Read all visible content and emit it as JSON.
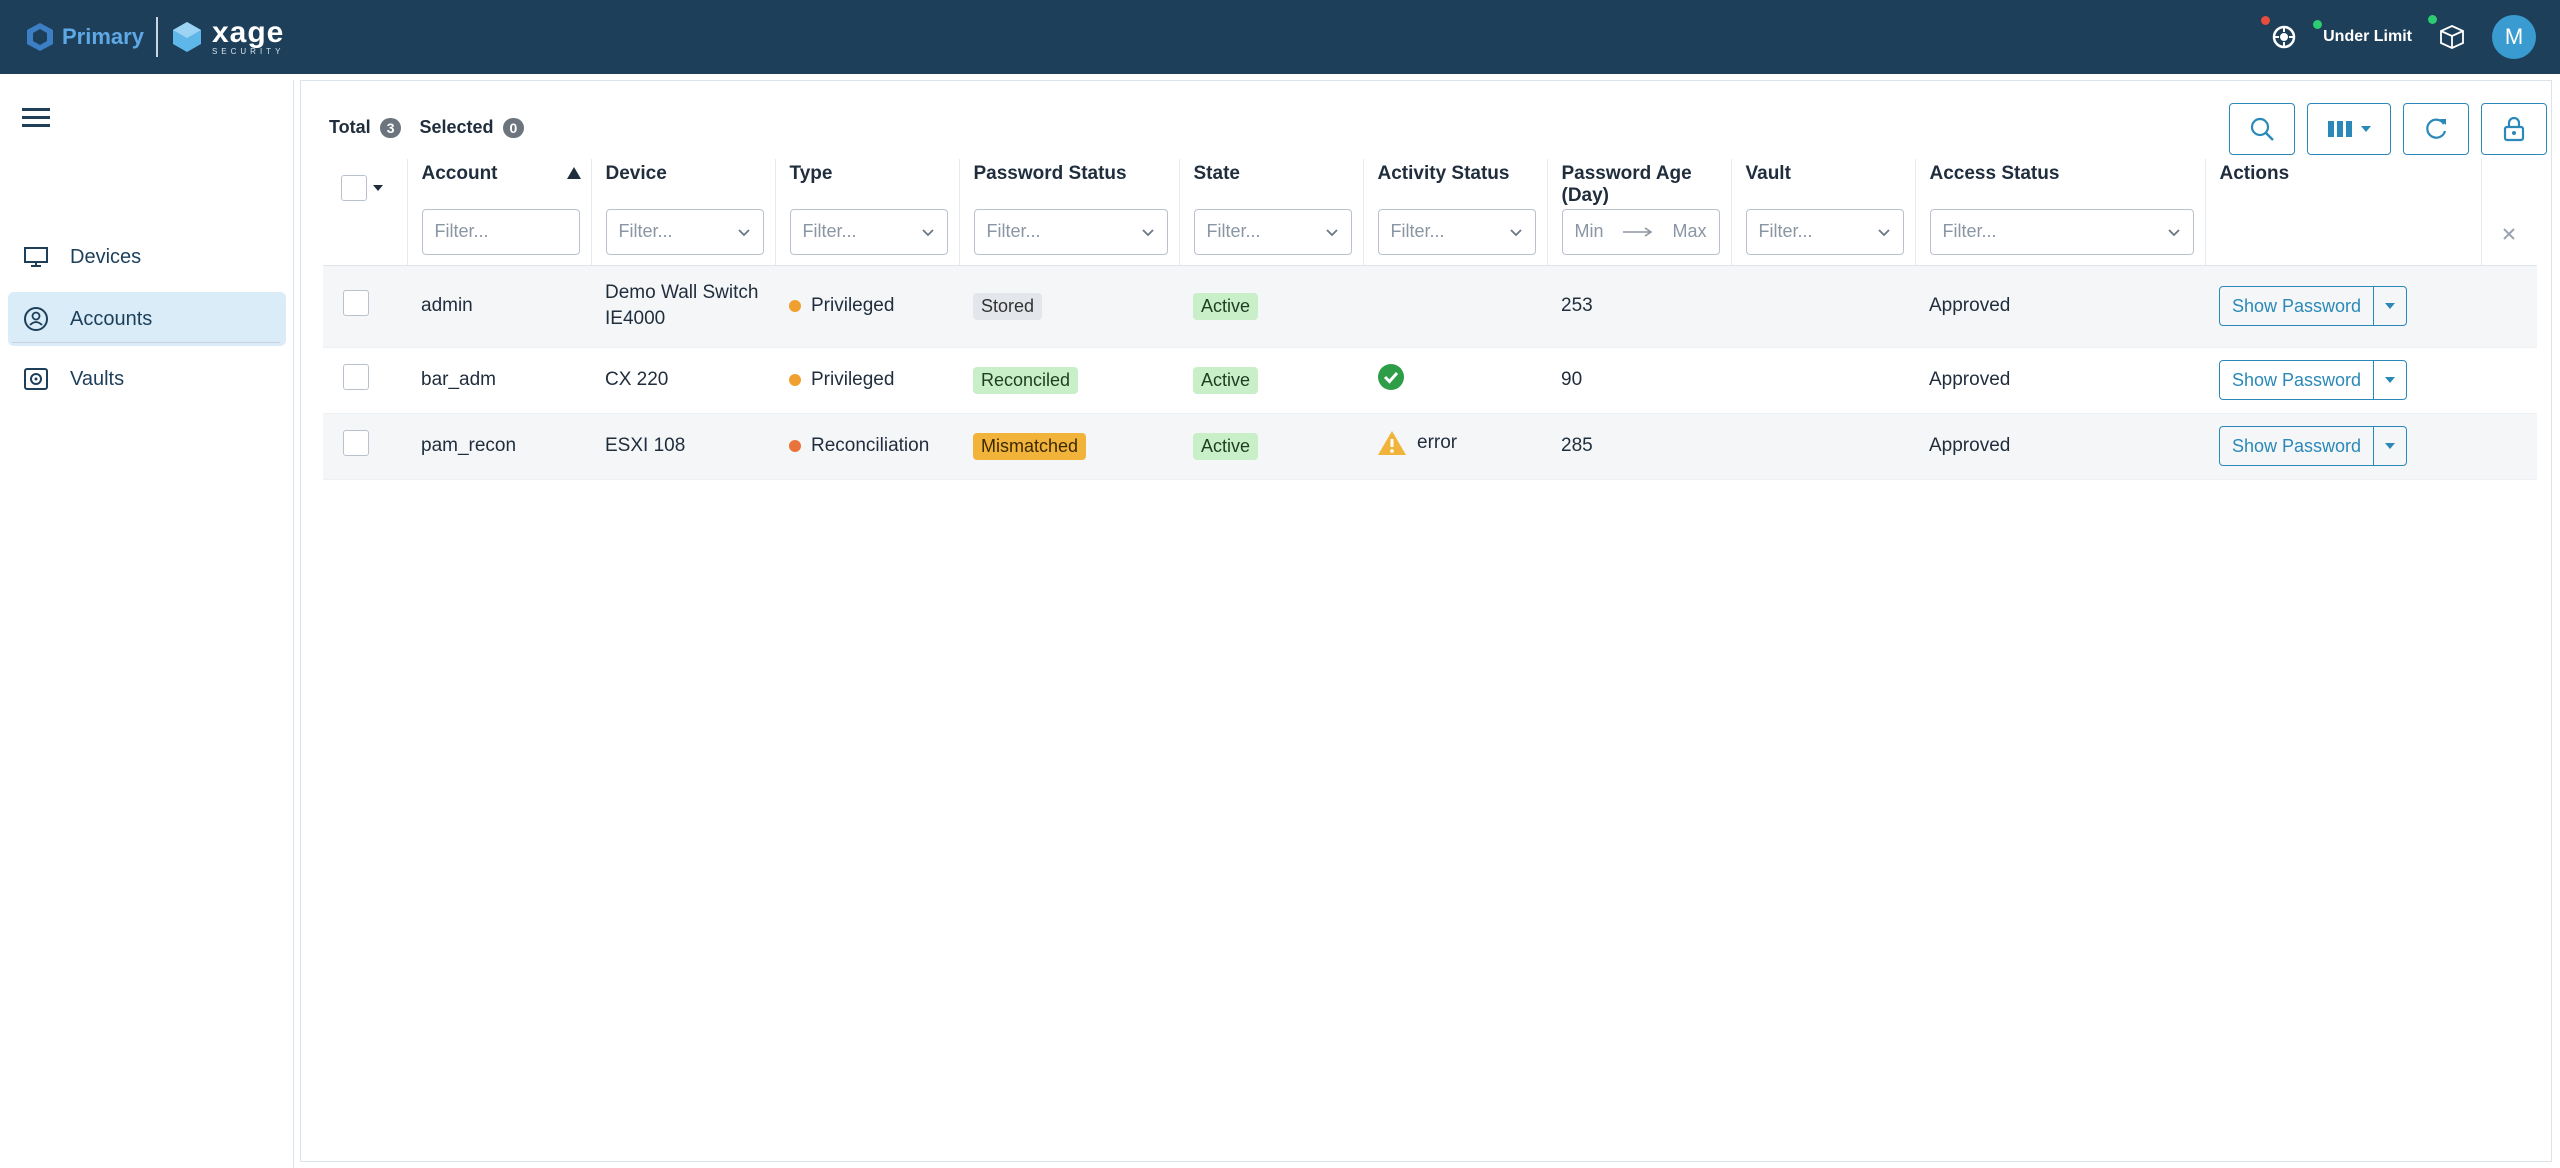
{
  "header": {
    "brand_primary": "Primary",
    "brand_xage": "xage",
    "brand_xage_sub": "SECURITY",
    "license_status": "Under Limit",
    "user_initial": "M",
    "colors": {
      "bar": "#1d3f5a",
      "red": "#e74c3c",
      "green": "#2ecc71"
    }
  },
  "sidebar": {
    "items": [
      {
        "label": "Devices",
        "icon": "monitor-icon"
      },
      {
        "label": "Accounts",
        "icon": "account-circle-icon"
      },
      {
        "label": "Vaults",
        "icon": "vault-icon"
      }
    ]
  },
  "summary": {
    "total_label": "Total",
    "total": "3",
    "selected_label": "Selected",
    "selected": "0"
  },
  "table": {
    "columns": {
      "account": "Account",
      "device": "Device",
      "type": "Type",
      "password_status": "Password Status",
      "state": "State",
      "activity_status": "Activity Status",
      "password_age": "Password Age (Day)",
      "vault": "Vault",
      "access_status": "Access Status",
      "actions": "Actions"
    },
    "filter_placeholder": "Filter...",
    "min_placeholder": "Min",
    "max_placeholder": "Max",
    "rows": [
      {
        "account": "admin",
        "device": "Demo Wall Switch IE4000",
        "type": "Privileged",
        "type_color": "#f0a030",
        "password_status": "Stored",
        "state": "Active",
        "activity": "",
        "age": "253",
        "vault": "",
        "access": "Approved",
        "action": "Show Password"
      },
      {
        "account": "bar_adm",
        "device": "CX 220",
        "type": "Privileged",
        "type_color": "#f0a030",
        "password_status": "Reconciled",
        "state": "Active",
        "activity": "",
        "age": "90",
        "vault": "",
        "access": "Approved",
        "action": "Show Password"
      },
      {
        "account": "pam_recon",
        "device": "ESXI 108",
        "type": "Reconciliation",
        "type_color": "#e8743b",
        "password_status": "Mismatched",
        "state": "Active",
        "activity": "error",
        "age": "285",
        "vault": "",
        "access": "Approved",
        "action": "Show Password"
      }
    ]
  }
}
